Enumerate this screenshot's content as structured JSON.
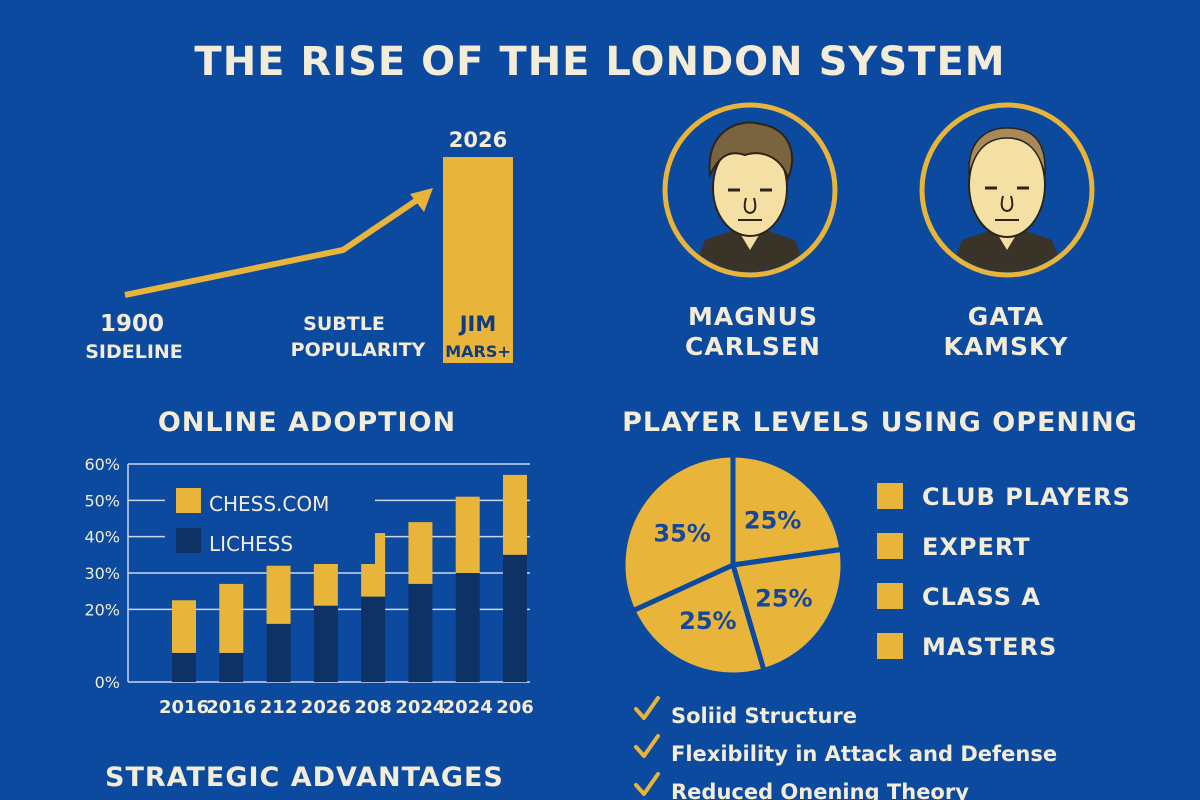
{
  "colors": {
    "background": "#0b4a9e",
    "accent": "#e8b43a",
    "dark": "#0f3266",
    "text": "#f3ecd8"
  },
  "title": "THE RISE OF THE LONDON SYSTEM",
  "timeline": {
    "start": {
      "year": "1900",
      "label": "SIDELINE"
    },
    "middle": {
      "line1": "SUBTLE",
      "line2": "POPULARITY"
    },
    "end": {
      "year": "2026",
      "line1": "JIM",
      "line2": "MARS+"
    }
  },
  "players": [
    {
      "line1": "MAGNUS",
      "line2": "CARLSEN"
    },
    {
      "line1": "GATA",
      "line2": "KAMSKY"
    }
  ],
  "chart_data": [
    {
      "type": "bar",
      "stacked": true,
      "title": "ONLINE ADOPTION",
      "categories": [
        "2016",
        "2016",
        "212",
        "2026",
        "208",
        "2024",
        "2024",
        "206"
      ],
      "y_ticks": [
        "0%",
        "20%",
        "30%",
        "40%",
        "50%",
        "60%"
      ],
      "y_tick_values": [
        0,
        20,
        30,
        40,
        50,
        60
      ],
      "ylim": [
        0,
        60
      ],
      "grid": true,
      "legend_placement": "top-left",
      "series": [
        {
          "name": "LICHESS",
          "color": "#0f3266",
          "values": [
            8,
            8,
            16,
            21,
            23.5,
            27,
            30,
            35
          ]
        },
        {
          "name": "CHESS.COM",
          "color": "#e8b43a",
          "values": [
            14.5,
            19,
            16,
            13,
            17.5,
            17,
            21,
            22
          ]
        }
      ]
    },
    {
      "type": "pie",
      "title": "PLAYER LEVELS USING OPENING",
      "slices": [
        {
          "label": "25%",
          "value": 25
        },
        {
          "label": "25%",
          "value": 25
        },
        {
          "label": "25%",
          "value": 25
        },
        {
          "label": "35%",
          "value": 35
        }
      ],
      "legend": [
        "CLUB PLAYERS",
        "EXPERT",
        "CLASS A",
        "MASTERS"
      ],
      "legend_placement": "right"
    }
  ],
  "advantages": [
    "Soliid Structure",
    "Flexibility in Attack and Defense",
    "Reduced Onening Theory"
  ],
  "strategic_title": "STRATEGIC ADVANTAGES"
}
